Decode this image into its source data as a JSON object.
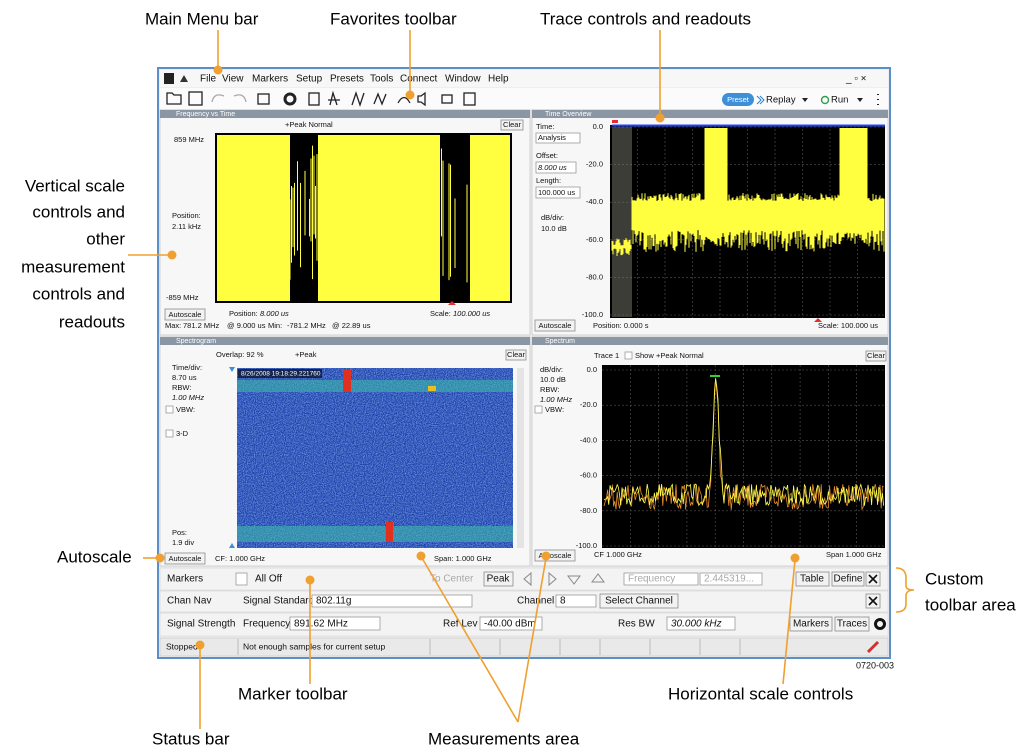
{
  "callouts": {
    "main_menu_bar": "Main Menu bar",
    "favorites_toolbar": "Favorites toolbar",
    "trace_controls": "Trace controls and readouts",
    "vertical_scale": [
      "Vertical scale",
      "controls and",
      "other",
      "measurement",
      "controls and",
      "readouts"
    ],
    "autoscale": "Autoscale",
    "custom_toolbar_area": [
      "Custom",
      "toolbar area"
    ],
    "marker_toolbar": "Marker toolbar",
    "status_bar": "Status bar",
    "measurements_area": "Measurements area",
    "horizontal_scale": "Horizontal scale controls"
  },
  "figure_id": "0720-003",
  "menu": [
    "File",
    "View",
    "Markers",
    "Setup",
    "Presets",
    "Tools",
    "Connect",
    "Window",
    "Help"
  ],
  "toolbar": {
    "preset": "Preset",
    "replay": "Replay",
    "run": "Run"
  },
  "panels": {
    "frequency_vs_time": {
      "title": "Frequency vs Time",
      "trace": "+Peak Normal",
      "clear": "Clear",
      "top": "859 MHz",
      "position_label": "Position:",
      "position": "2.11 kHz",
      "bottom": "-859 MHz",
      "autoscale": "Autoscale",
      "h_position_label": "Position:",
      "h_position": "8.000 us",
      "scale_label": "Scale:",
      "scale": "100.000 us",
      "max_label": "Max:",
      "max": "781.2 MHz",
      "max_at": "@  9.000 us",
      "min_label": "Min:",
      "min": "-781.2 MHz",
      "min_at": "@  22.89 us"
    },
    "time_overview": {
      "title": "Time Overview",
      "time_label": "Time:",
      "time": "Analysis",
      "offset_label": "Offset:",
      "offset": "8.000 us",
      "length_label": "Length:",
      "length": "100.000 us",
      "dbdiv_label": "dB/div:",
      "dbdiv": "10.0 dB",
      "yticks": [
        "0.0",
        "-20.0",
        "-40.0",
        "-60.0",
        "-80.0",
        "-100.0"
      ],
      "autoscale": "Autoscale",
      "position": "Position: 0.000 s",
      "scale": "Scale: 100.000 us"
    },
    "spectrogram": {
      "title": "Spectrogram",
      "overlap": "Overlap: 92 %",
      "trace": "+Peak",
      "clear": "Clear",
      "timediv_label": "Time/div:",
      "timediv": "8.70 us",
      "rbw_label": "RBW:",
      "rbw": "1.00 MHz",
      "vbw": "VBW:",
      "threed": "3-D",
      "pos_label": "Pos:",
      "pos": "1.9 div",
      "timestamp": "8/26/2008 19:18:29.221760",
      "autoscale": "Autoscale",
      "cf": "CF:  1.000 GHz",
      "span": "Span:  1.000 GHz"
    },
    "spectrum": {
      "title": "Spectrum",
      "trace": "Trace 1",
      "show": "Show",
      "detection": "+Peak Normal",
      "clear": "Clear",
      "dbdiv_label": "dB/div:",
      "dbdiv": "10.0 dB",
      "rbw_label": "RBW:",
      "rbw": "1.00 MHz",
      "vbw": "VBW:",
      "yticks": [
        "0.0",
        "-20.0",
        "-40.0",
        "-60.0",
        "-80.0",
        "-100.0"
      ],
      "autoscale": "Autoscale",
      "cf": "CF  1.000 GHz",
      "span": "Span  1.000 GHz"
    }
  },
  "custom_toolbars": {
    "markers": {
      "label": "Markers",
      "select": "All Off",
      "to_center": "To Center",
      "peak": "Peak",
      "readout_type": "Frequency",
      "readout": "2.445319...",
      "table": "Table",
      "define": "Define"
    },
    "chan_nav": {
      "label": "Chan Nav",
      "standard_label": "Signal Standard",
      "standard": "802.11g",
      "channel_label": "Channel",
      "channel": "8",
      "select": "Select Channel"
    },
    "signal_strength": {
      "label": "Signal Strength",
      "frequency_label": "Frequency",
      "frequency": "891.62 MHz",
      "ref_lev_label": "Ref Lev",
      "ref_lev": "-40.00 dBm",
      "res_bw_label": "Res BW",
      "res_bw": "30.000 kHz",
      "markers": "Markers",
      "traces": "Traces"
    }
  },
  "status_bar": {
    "state": "Stopped",
    "message": "Not enough samples for current setup"
  }
}
